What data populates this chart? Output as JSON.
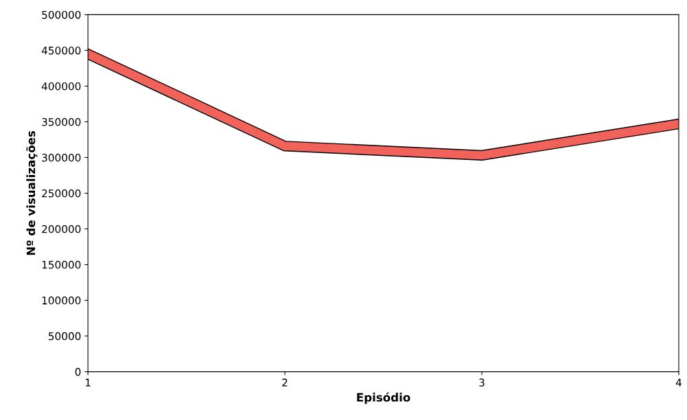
{
  "chart_data": {
    "type": "line",
    "xlabel": "Episódio",
    "ylabel": "Nº de visualizações",
    "categories": [
      "1",
      "2",
      "3",
      "4"
    ],
    "series": [
      {
        "color": "#f0625a",
        "values": [
          445000,
          316000,
          303000,
          347000
        ]
      }
    ],
    "ylim": [
      0,
      500000
    ],
    "yticks": [
      0,
      50000,
      100000,
      150000,
      200000,
      250000,
      300000,
      350000,
      400000,
      450000,
      500000
    ],
    "grid": false,
    "legend": false,
    "marker": "none",
    "line_style": "solid"
  }
}
